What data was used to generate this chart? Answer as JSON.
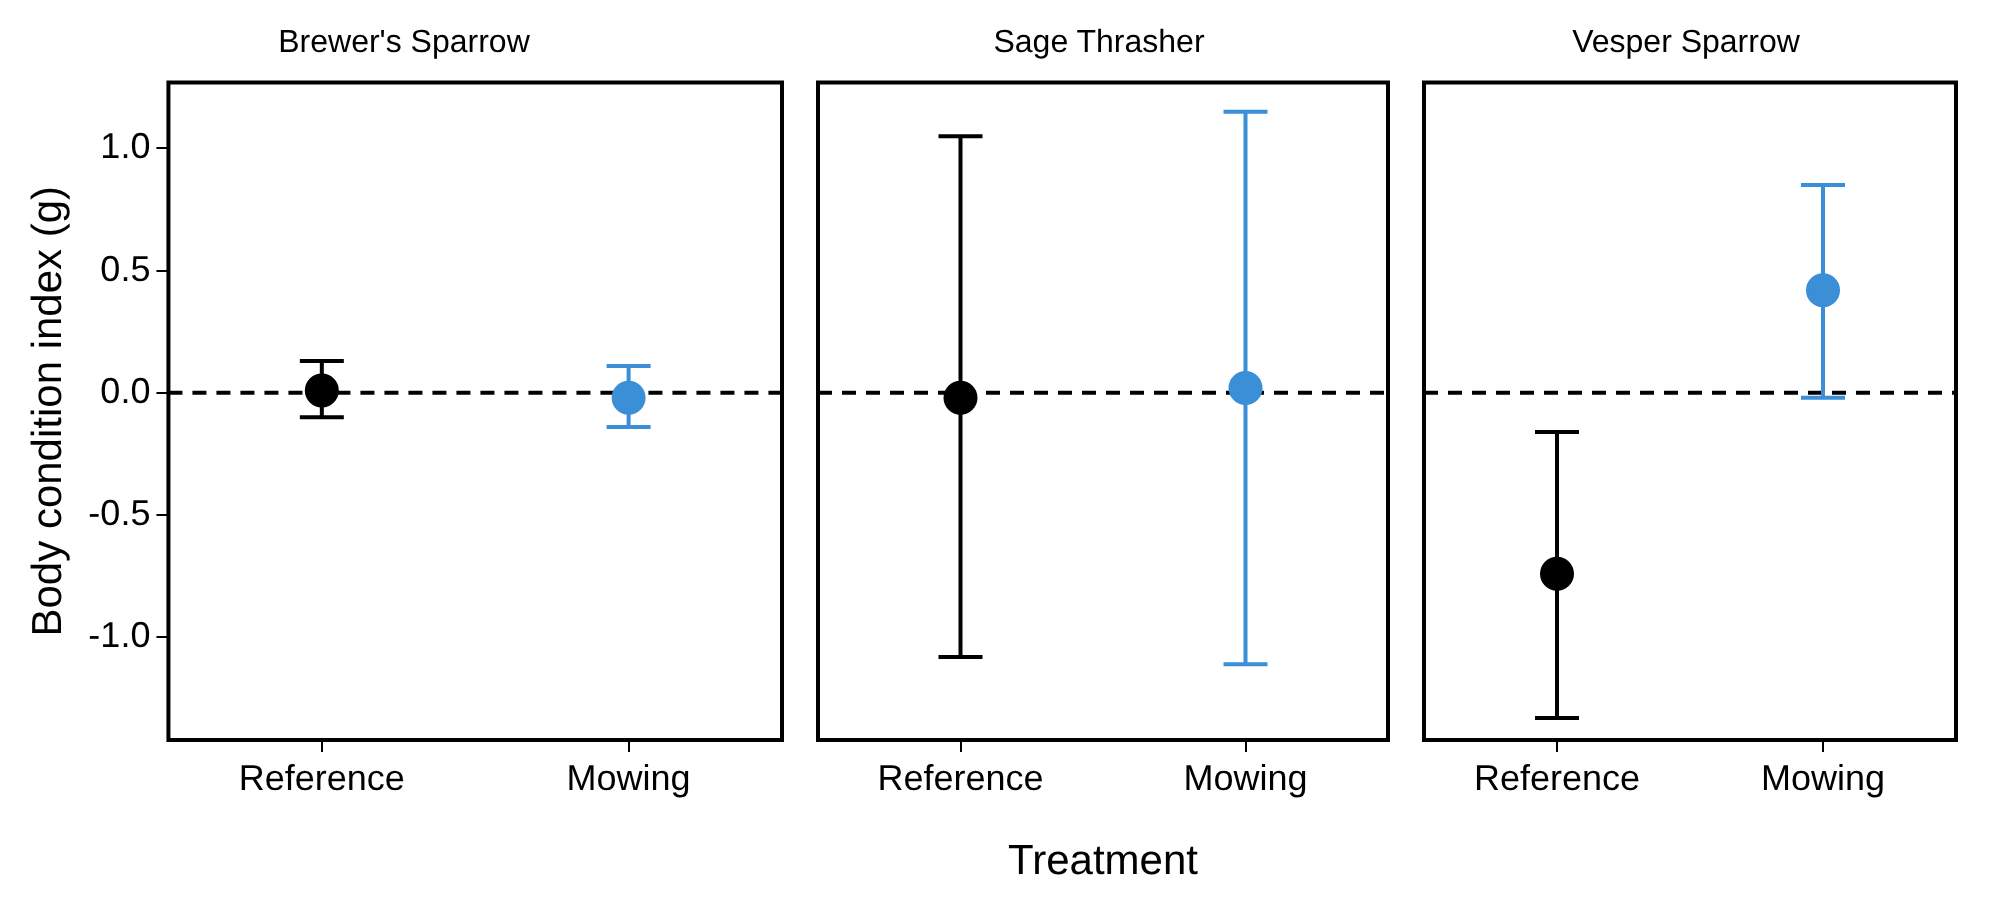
{
  "chart_data": [
    {
      "type": "scatter",
      "title": "Brewer's Sparrow",
      "ylabel": "Body condition index (g)",
      "categories": [
        "Reference",
        "Mowing"
      ],
      "values": [
        0.01,
        -0.02
      ],
      "colors": [
        "#000000",
        "#3a8fd6"
      ],
      "errors": [
        [
          -0.1,
          0.13
        ],
        [
          -0.14,
          0.11
        ]
      ],
      "ylim": [
        -1.42,
        1.27
      ],
      "yticks": [
        {
          "value": -1,
          "label": "-1.0"
        },
        -0.5,
        {
          "value": 0,
          "label": "0.0"
        },
        0.5,
        {
          "value": 1,
          "label": "1.0"
        }
      ],
      "ref_lines": [
        {
          "axis": "y",
          "value": 0,
          "color": "#000000",
          "line_style": "dashed"
        }
      ],
      "grid": false,
      "marker": "circle"
    },
    {
      "type": "scatter",
      "title": "Sage Thrasher",
      "xlabel": "Treatment",
      "categories": [
        "Reference",
        "Mowing"
      ],
      "values": [
        -0.02,
        0.02
      ],
      "colors": [
        "#000000",
        "#3a8fd6"
      ],
      "errors": [
        [
          -1.08,
          1.05
        ],
        [
          -1.11,
          1.15
        ]
      ],
      "ylim": [
        -1.42,
        1.27
      ],
      "tick_labels": "x",
      "ref_lines": [
        {
          "axis": "y",
          "value": 0,
          "color": "#000000",
          "line_style": "dashed"
        }
      ],
      "grid": false,
      "marker": "circle"
    },
    {
      "type": "scatter",
      "title": "Vesper Sparrow",
      "categories": [
        "Reference",
        "Mowing"
      ],
      "values": [
        -0.74,
        0.42
      ],
      "colors": [
        "#000000",
        "#3a8fd6"
      ],
      "errors": [
        [
          -1.33,
          -0.16
        ],
        [
          -0.02,
          0.85
        ]
      ],
      "ylim": [
        -1.42,
        1.27
      ],
      "tick_labels": "x",
      "ref_lines": [
        {
          "axis": "y",
          "value": 0,
          "color": "#000000",
          "line_style": "dashed"
        }
      ],
      "grid": false,
      "marker": "circle"
    }
  ]
}
